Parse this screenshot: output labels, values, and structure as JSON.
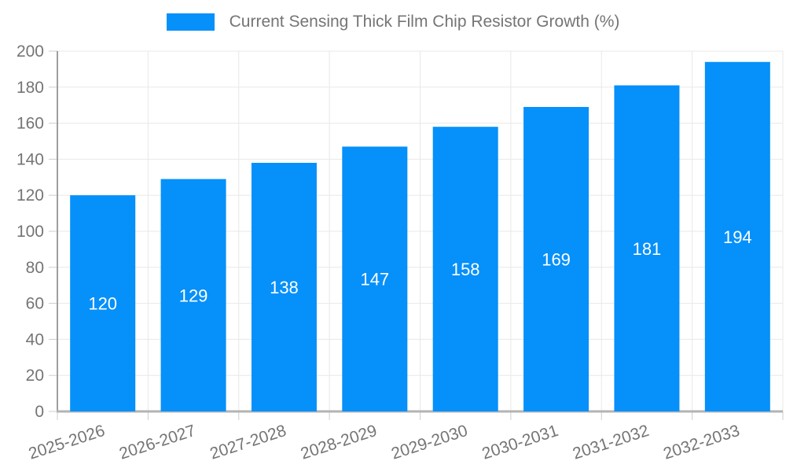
{
  "legend": {
    "label": "Current Sensing Thick Film Chip Resistor Growth (%)"
  },
  "chart_data": {
    "type": "bar",
    "title": "Current Sensing Thick Film Chip Resistor Growth (%)",
    "categories": [
      "2025-2026",
      "2026-2027",
      "2027-2028",
      "2028-2029",
      "2029-2030",
      "2030-2031",
      "2031-2032",
      "2032-2033"
    ],
    "series": [
      {
        "name": "Current Sensing Thick Film Chip Resistor Growth (%)",
        "values": [
          120,
          129,
          138,
          147,
          158,
          169,
          181,
          194
        ]
      }
    ],
    "xlabel": "",
    "ylabel": "",
    "ylim": [
      0,
      200
    ],
    "ytick_step": 20,
    "grid": true,
    "legend_position": "top",
    "show_bar_value_labels": true,
    "x_label_rotation_deg": -18,
    "colors": {
      "bar": "#0690fa",
      "bar_value_label": "#ffffff",
      "axis_text": "#757575",
      "grid_line": "#e8e8e8",
      "y_axis_line": "#9e9e9e",
      "x_axis_line": "#b3b3b3",
      "tick_line": "#cccccc",
      "background": "#ffffff"
    }
  }
}
